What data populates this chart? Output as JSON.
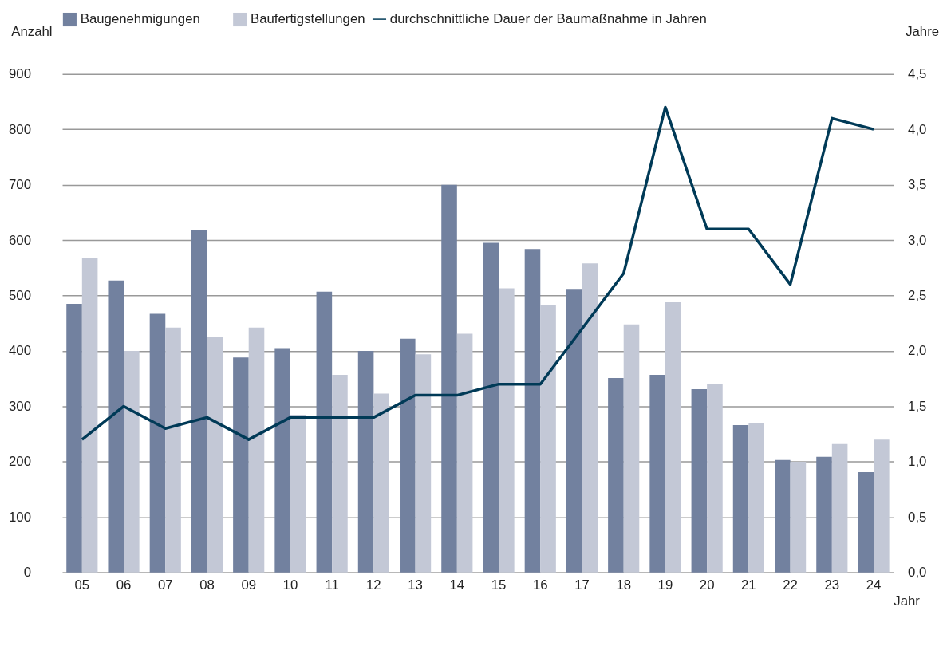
{
  "chart_data": {
    "type": "bar",
    "xlabel": "Jahr",
    "ylabel": "Anzahl",
    "y2label": "Jahre",
    "categories": [
      "05",
      "06",
      "07",
      "08",
      "09",
      "10",
      "11",
      "12",
      "13",
      "14",
      "15",
      "16",
      "17",
      "18",
      "19",
      "20",
      "21",
      "22",
      "23",
      "24"
    ],
    "series": [
      {
        "name": "Baugenehmigungen",
        "color": "#72819f",
        "values": [
          485,
          527,
          467,
          618,
          388,
          405,
          507,
          400,
          422,
          700,
          595,
          584,
          512,
          351,
          357,
          331,
          266,
          203,
          209,
          181
        ]
      },
      {
        "name": "Baufertigstellungen",
        "color": "#c3c8d6",
        "values": [
          567,
          400,
          442,
          425,
          442,
          285,
          357,
          323,
          394,
          431,
          513,
          482,
          558,
          448,
          488,
          340,
          269,
          200,
          232,
          240
        ]
      },
      {
        "name": "durchschnittliche Dauer der Baumaßnahme in Jahren",
        "type": "line",
        "axis": "y2",
        "color": "#003a57",
        "values": [
          1.2,
          1.5,
          1.3,
          1.4,
          1.2,
          1.4,
          1.4,
          1.4,
          1.6,
          1.6,
          1.7,
          1.7,
          2.2,
          2.7,
          4.2,
          3.1,
          3.1,
          2.6,
          4.1,
          4.0
        ]
      }
    ],
    "ylim": [
      0,
      900
    ],
    "yticks": [
      0,
      100,
      200,
      300,
      400,
      500,
      600,
      700,
      800,
      900
    ],
    "y2lim": [
      0,
      4.5
    ],
    "y2ticks": [
      {
        "value": 0,
        "label": "0,0"
      },
      {
        "value": 0.5,
        "label": "0,5"
      },
      {
        "value": 1,
        "label": "1,0"
      },
      {
        "value": 1.5,
        "label": "1,5"
      },
      {
        "value": 2,
        "label": "2,0"
      },
      {
        "value": 2.5,
        "label": "2,5"
      },
      {
        "value": 3,
        "label": "3,0"
      },
      {
        "value": 3.5,
        "label": "3,5"
      },
      {
        "value": 4,
        "label": "4,0"
      },
      {
        "value": 4.5,
        "label": "4,5"
      }
    ],
    "grid": "y",
    "legend": "top",
    "marker": "none",
    "line_style": "solid"
  }
}
